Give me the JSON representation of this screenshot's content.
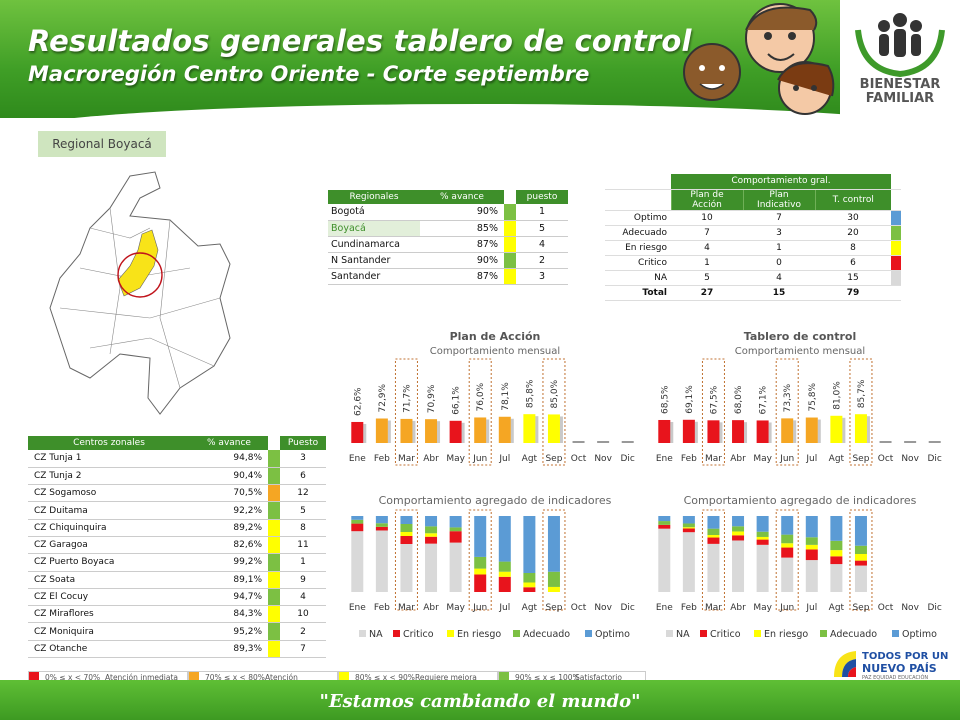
{
  "header": {
    "title": "Resultados generales tablero de control",
    "subtitle": "Macroregión Centro Oriente - Corte septiembre",
    "logo_line1": "BIENESTAR",
    "logo_line2": "FAMILIAR"
  },
  "regional_tag": "Regional Boyacá",
  "colors": {
    "green": "#7cc043",
    "yellow": "#ffff00",
    "orange": "#f5a623",
    "red": "#e8141c",
    "blue": "#5b9bd5",
    "gray": "#d9d9d9"
  },
  "regionales_table": {
    "headers": [
      "Regionales",
      "% avance",
      "puesto"
    ],
    "rows": [
      {
        "name": "Bogotá",
        "avance": "90%",
        "color": "#7cc043",
        "puesto": "1"
      },
      {
        "name": "Boyacá",
        "avance": "85%",
        "color": "#ffff00",
        "puesto": "5"
      },
      {
        "name": "Cundinamarca",
        "avance": "87%",
        "color": "#ffff00",
        "puesto": "4"
      },
      {
        "name": "N Santander",
        "avance": "90%",
        "color": "#7cc043",
        "puesto": "2"
      },
      {
        "name": "Santander",
        "avance": "87%",
        "color": "#ffff00",
        "puesto": "3"
      }
    ]
  },
  "comportamiento_table": {
    "title": "Comportamiento gral.",
    "headers": [
      "Plan de Acción",
      "Plan Indicativo",
      "T. control"
    ],
    "rows": [
      {
        "label": "Optimo",
        "v": [
          "10",
          "7",
          "30"
        ],
        "color": "#5b9bd5"
      },
      {
        "label": "Adecuado",
        "v": [
          "7",
          "3",
          "20"
        ],
        "color": "#7cc043"
      },
      {
        "label": "En riesgo",
        "v": [
          "4",
          "1",
          "8"
        ],
        "color": "#ffff00"
      },
      {
        "label": "Critico",
        "v": [
          "1",
          "0",
          "6"
        ],
        "color": "#e8141c"
      },
      {
        "label": "NA",
        "v": [
          "5",
          "4",
          "15"
        ],
        "color": "#d9d9d9"
      }
    ],
    "total": {
      "label": "Total",
      "v": [
        "27",
        "15",
        "79"
      ]
    }
  },
  "centros_table": {
    "headers": [
      "Centros zonales",
      "% avance",
      "Puesto"
    ],
    "rows": [
      {
        "name": "CZ Tunja 1",
        "avance": "94,8%",
        "color": "#7cc043",
        "puesto": "3"
      },
      {
        "name": "CZ Tunja 2",
        "avance": "90,4%",
        "color": "#7cc043",
        "puesto": "6"
      },
      {
        "name": "CZ Sogamoso",
        "avance": "70,5%",
        "color": "#f5a623",
        "puesto": "12"
      },
      {
        "name": "CZ Duitama",
        "avance": "92,2%",
        "color": "#7cc043",
        "puesto": "5"
      },
      {
        "name": "CZ Chiquinquira",
        "avance": "89,2%",
        "color": "#ffff00",
        "puesto": "8"
      },
      {
        "name": "CZ Garagoa",
        "avance": "82,6%",
        "color": "#ffff00",
        "puesto": "11"
      },
      {
        "name": "CZ Puerto Boyaca",
        "avance": "99,2%",
        "color": "#7cc043",
        "puesto": "1"
      },
      {
        "name": "CZ Soata",
        "avance": "89,1%",
        "color": "#ffff00",
        "puesto": "9"
      },
      {
        "name": "CZ El Cocuy",
        "avance": "94,7%",
        "color": "#7cc043",
        "puesto": "4"
      },
      {
        "name": "CZ Miraflores",
        "avance": "84,3%",
        "color": "#ffff00",
        "puesto": "10"
      },
      {
        "name": "CZ Moniquira",
        "avance": "95,2%",
        "color": "#7cc043",
        "puesto": "2"
      },
      {
        "name": "CZ Otanche",
        "avance": "89,3%",
        "color": "#ffff00",
        "puesto": "7"
      }
    ]
  },
  "legend_bar": [
    {
      "color": "#e8141c",
      "range": "0% ≤ x < 70%",
      "label": "Atención inmediata"
    },
    {
      "color": "#f5a623",
      "range": "70% ≤ x < 80%",
      "label": "Atención prioritaria"
    },
    {
      "color": "#ffff00",
      "range": "80% ≤ x < 90%",
      "label": "Requiere mejora"
    },
    {
      "color": "#7cc043",
      "range": "90% ≤ x ≤ 100%",
      "label": "Satisfactorio"
    }
  ],
  "footer": {
    "slogan": "\"Estamos cambiando el mundo\"",
    "tpn1": "TODOS POR UN",
    "tpn2": "NUEVO PAÍS",
    "tpn3": "PAZ  EQUIDAD  EDUCACIÓN"
  },
  "chart_data": [
    {
      "id": "plan-mensual",
      "type": "bar",
      "title": "Plan de Acción",
      "subtitle": "Comportamiento mensual",
      "categories": [
        "Ene",
        "Feb",
        "Mar",
        "Abr",
        "May",
        "Jun",
        "Jul",
        "Agt",
        "Sep",
        "Oct",
        "Nov",
        "Dic"
      ],
      "values": [
        62.6,
        72.9,
        71.7,
        70.9,
        66.1,
        76.0,
        78.1,
        85.8,
        85.0,
        null,
        null,
        null
      ],
      "labels": [
        "62,6%",
        "72,9%",
        "71,7%",
        "70,9%",
        "66,1%",
        "76,0%",
        "78,1%",
        "85,8%",
        "85,0%",
        "",
        "",
        ""
      ],
      "highlight": [
        "Mar",
        "Jun",
        "Sep"
      ]
    },
    {
      "id": "tablero-mensual",
      "type": "bar",
      "title": "Tablero de control",
      "subtitle": "Comportamiento mensual",
      "categories": [
        "Ene",
        "Feb",
        "Mar",
        "Abr",
        "May",
        "Jun",
        "Jul",
        "Agt",
        "Sep",
        "Oct",
        "Nov",
        "Dic"
      ],
      "values": [
        68.5,
        69.1,
        67.5,
        68.0,
        67.1,
        73.3,
        75.8,
        81.0,
        85.7,
        null,
        null,
        null
      ],
      "labels": [
        "68,5%",
        "69,1%",
        "67,5%",
        "68,0%",
        "67,1%",
        "73,3%",
        "75,8%",
        "81,0%",
        "85,7%",
        "",
        "",
        ""
      ],
      "highlight": [
        "Mar",
        "Jun",
        "Sep"
      ]
    },
    {
      "id": "plan-agregado",
      "type": "bar",
      "subtitle": "Comportamiento agregado de indicadores",
      "stacked": true,
      "categories": [
        "Ene",
        "Feb",
        "Mar",
        "Abr",
        "May",
        "Jun",
        "Jul",
        "Agt",
        "Sep",
        "Oct",
        "Nov",
        "Dic"
      ],
      "series": [
        {
          "name": "NA",
          "values": [
            16,
            17,
            12,
            14,
            13,
            0,
            0,
            0,
            0,
            null,
            null,
            null
          ]
        },
        {
          "name": "Critico",
          "values": [
            2,
            1,
            2,
            2,
            3,
            3,
            3,
            1,
            0,
            null,
            null,
            null
          ]
        },
        {
          "name": "En riesgo",
          "values": [
            0,
            0,
            1,
            1,
            0,
            1,
            1,
            1,
            1,
            null,
            null,
            null
          ]
        },
        {
          "name": "Adecuado",
          "values": [
            1,
            1,
            2,
            2,
            1,
            2,
            2,
            2,
            3,
            null,
            null,
            null
          ]
        },
        {
          "name": "Optimo",
          "values": [
            1,
            2,
            2,
            3,
            3,
            7,
            9,
            12,
            11,
            null,
            null,
            null
          ]
        }
      ],
      "highlight": [
        "Mar",
        "Jun",
        "Sep"
      ]
    },
    {
      "id": "tablero-agregado",
      "type": "bar",
      "subtitle": "Comportamiento agregado de indicadores",
      "stacked": true,
      "categories": [
        "Ene",
        "Feb",
        "Mar",
        "Abr",
        "May",
        "Jun",
        "Jul",
        "Agt",
        "Sep",
        "Oct",
        "Nov",
        "Dic"
      ],
      "series": [
        {
          "name": "NA",
          "values": [
            50,
            48,
            38,
            40,
            36,
            24,
            21,
            18,
            16,
            null,
            null,
            null
          ]
        },
        {
          "name": "Critico",
          "values": [
            3,
            3,
            5,
            4,
            4,
            7,
            7,
            5,
            3,
            null,
            null,
            null
          ]
        },
        {
          "name": "En riesgo",
          "values": [
            0,
            1,
            2,
            3,
            2,
            3,
            3,
            4,
            4,
            null,
            null,
            null
          ]
        },
        {
          "name": "Adecuado",
          "values": [
            3,
            3,
            5,
            4,
            4,
            6,
            5,
            6,
            5,
            null,
            null,
            null
          ]
        },
        {
          "name": "Optimo",
          "values": [
            4,
            6,
            10,
            8,
            12,
            13,
            14,
            16,
            18,
            null,
            null,
            null
          ]
        }
      ],
      "highlight": [
        "Mar",
        "Jun",
        "Sep"
      ]
    }
  ]
}
